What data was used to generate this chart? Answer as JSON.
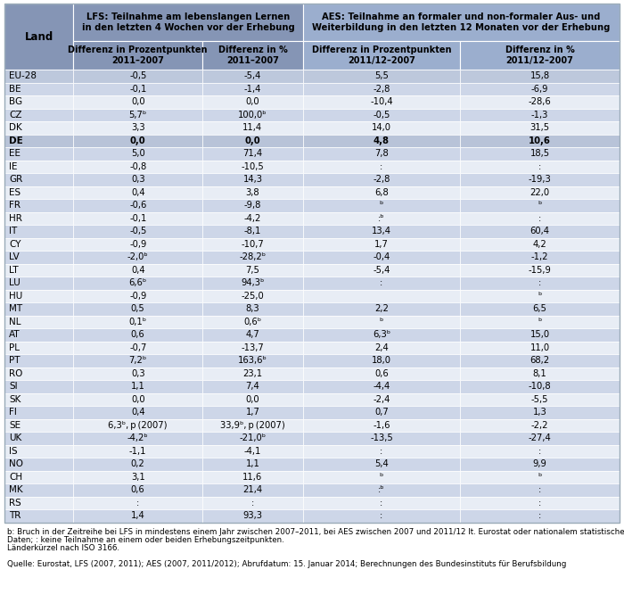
{
  "header1_lfs": "LFS: Teilnahme am lebenslangen Lernen\nin den letzten 4 Wochen vor der Erhebung",
  "header1_aes": "AES: Teilnahme an formaler und non-formaler Aus- und\nWeiterbildung in den letzten 12 Monaten vor der Erhebung",
  "header2_lfs1": "Differenz in Prozentpunkten\n2011–2007",
  "header2_lfs2": "Differenz in %\n2011–2007",
  "header2_aes1": "Differenz in Prozentpunkten\n2011/12–2007",
  "header2_aes2": "Differenz in %\n2011/12–2007",
  "rows": [
    [
      "EU-28",
      "-0,5",
      "-5,4",
      "5,5",
      "15,8",
      "eu",
      false
    ],
    [
      "BE",
      "-0,1",
      "-1,4",
      "-2,8",
      "-6,9",
      "light",
      false
    ],
    [
      "BG",
      "0,0",
      "0,0",
      "-10,4",
      "-28,6",
      "white",
      false
    ],
    [
      "CZ",
      "5,7ᵇ",
      "100,0ᵇ",
      "-0,5",
      "-1,3",
      "light",
      false
    ],
    [
      "DK",
      "3,3",
      "11,4",
      "14,0",
      "31,5",
      "white",
      false
    ],
    [
      "DE",
      "0,0",
      "0,0",
      "4,8",
      "10,6",
      "de",
      true
    ],
    [
      "EE",
      "5,0",
      "71,4",
      "7,8",
      "18,5",
      "light",
      false
    ],
    [
      "IE",
      "-0,8",
      "-10,5",
      ":",
      ":",
      "white",
      false
    ],
    [
      "GR",
      "0,3",
      "14,3",
      "-2,8",
      "-19,3",
      "light",
      false
    ],
    [
      "ES",
      "0,4",
      "3,8",
      "6,8",
      "22,0",
      "white",
      false
    ],
    [
      "FR",
      "-0,6",
      "-9,8",
      "ᵇ",
      "ᵇ",
      "light",
      false
    ],
    [
      "HR",
      "-0,1",
      "-4,2",
      ":ᵇ",
      ":",
      "white",
      false
    ],
    [
      "IT",
      "-0,5",
      "-8,1",
      "13,4",
      "60,4",
      "light",
      false
    ],
    [
      "CY",
      "-0,9",
      "-10,7",
      "1,7",
      "4,2",
      "white",
      false
    ],
    [
      "LV",
      "-2,0ᵇ",
      "-28,2ᵇ",
      "-0,4",
      "-1,2",
      "light",
      false
    ],
    [
      "LT",
      "0,4",
      "7,5",
      "-5,4",
      "-15,9",
      "white",
      false
    ],
    [
      "LU",
      "6,6ᵇ",
      "94,3ᵇ",
      ":",
      ":",
      "light",
      false
    ],
    [
      "HU",
      "-0,9",
      "-25,0",
      "",
      "ᵇ",
      "white",
      false
    ],
    [
      "MT",
      "0,5",
      "8,3",
      "2,2",
      "6,5",
      "light",
      false
    ],
    [
      "NL",
      "0,1ᵇ",
      "0,6ᵇ",
      "ᵇ",
      "ᵇ",
      "white",
      false
    ],
    [
      "AT",
      "0,6",
      "4,7",
      "6,3ᵇ",
      "15,0",
      "light",
      false
    ],
    [
      "PL",
      "-0,7",
      "-13,7",
      "2,4",
      "11,0",
      "white",
      false
    ],
    [
      "PT",
      "7,2ᵇ",
      "163,6ᵇ",
      "18,0",
      "68,2",
      "light",
      false
    ],
    [
      "RO",
      "0,3",
      "23,1",
      "0,6",
      "8,1",
      "white",
      false
    ],
    [
      "SI",
      "1,1",
      "7,4",
      "-4,4",
      "-10,8",
      "light",
      false
    ],
    [
      "SK",
      "0,0",
      "0,0",
      "-2,4",
      "-5,5",
      "white",
      false
    ],
    [
      "FI",
      "0,4",
      "1,7",
      "0,7",
      "1,3",
      "light",
      false
    ],
    [
      "SE",
      "6,3ᵇ, p (2007)",
      "33,9ᵇ, p (2007)",
      "-1,6",
      "-2,2",
      "white",
      false
    ],
    [
      "UK",
      "-4,2ᵇ",
      "-21,0ᵇ",
      "-13,5",
      "-27,4",
      "light",
      false
    ],
    [
      "IS",
      "-1,1",
      "-4,1",
      ":",
      ":",
      "white",
      false
    ],
    [
      "NO",
      "0,2",
      "1,1",
      "5,4",
      "9,9",
      "light",
      false
    ],
    [
      "CH",
      "3,1",
      "11,6",
      "ᵇ",
      "ᵇ",
      "white",
      false
    ],
    [
      "MK",
      "0,6",
      "21,4",
      ":ᵇ",
      ":",
      "light",
      false
    ],
    [
      "RS",
      ":",
      ":",
      ":",
      ":",
      "white",
      false
    ],
    [
      "TR",
      "1,4",
      "93,3",
      ":",
      ":",
      "light",
      false
    ]
  ],
  "footnote_line1": "b: Bruch in der Zeitreihe bei LFS in mindestens einem Jahr zwischen 2007–2011, bei AES zwischen 2007 und 2011/12 lt. Eurostat oder nationalem statistischem Amt; p: vorläufige",
  "footnote_line2": "Daten; : keine Teilnahme an einem oder beiden Erhebungszeitpunkten.",
  "footnote_line3": "Länderkürzel nach ISO 3166.",
  "source": "Quelle: Eurostat, LFS (2007, 2011); AES (2007, 2011/2012); Abrufdatum: 15. Januar 2014; Berechnungen des Bundesinstituts für Berufsbildung",
  "color_header_lfs": "#8595b5",
  "color_header_aes": "#9baece",
  "color_row_light": "#cdd6e8",
  "color_row_white": "#e8edf5",
  "color_eu_row": "#bdc8dc",
  "color_de_row": "#b8c3d8",
  "color_border": "#9aabb8"
}
